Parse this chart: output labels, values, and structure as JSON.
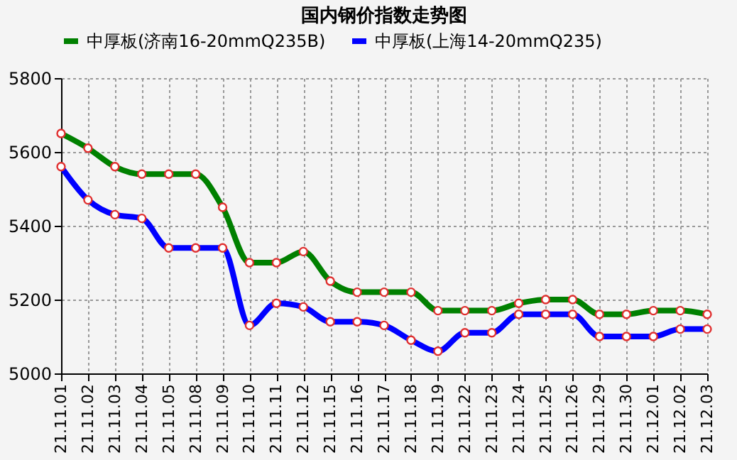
{
  "chart_data": {
    "type": "line",
    "title": "国内钢价指数走势图",
    "categories": [
      "21.11.01",
      "21.11.02",
      "21.11.03",
      "21.11.04",
      "21.11.05",
      "21.11.08",
      "21.11.09",
      "21.11.10",
      "21.11.11",
      "21.11.12",
      "21.11.15",
      "21.11.16",
      "21.11.17",
      "21.11.18",
      "21.11.19",
      "21.11.22",
      "21.11.23",
      "21.11.24",
      "21.11.25",
      "21.11.26",
      "21.11.29",
      "21.11.30",
      "21.12.01",
      "21.12.02",
      "21.12.03"
    ],
    "series": [
      {
        "name": "中厚板(济南16-20mmQ235B)",
        "color": "#008000",
        "values": [
          5650,
          5610,
          5560,
          5540,
          5540,
          5540,
          5450,
          5300,
          5300,
          5330,
          5250,
          5220,
          5220,
          5220,
          5170,
          5170,
          5170,
          5190,
          5200,
          5200,
          5160,
          5160,
          5170,
          5170,
          5160
        ]
      },
      {
        "name": "中厚板(上海14-20mmQ235)",
        "color": "#0000ff",
        "values": [
          5560,
          5470,
          5430,
          5420,
          5340,
          5340,
          5340,
          5130,
          5190,
          5180,
          5140,
          5140,
          5130,
          5090,
          5060,
          5110,
          5110,
          5160,
          5160,
          5160,
          5100,
          5100,
          5100,
          5120,
          5120
        ]
      }
    ],
    "ylim": [
      5000,
      5800
    ],
    "yticks": [
      5000,
      5200,
      5400,
      5600,
      5800
    ],
    "grid": true,
    "legend": "top",
    "marker": "circle",
    "line_style": "solid"
  }
}
